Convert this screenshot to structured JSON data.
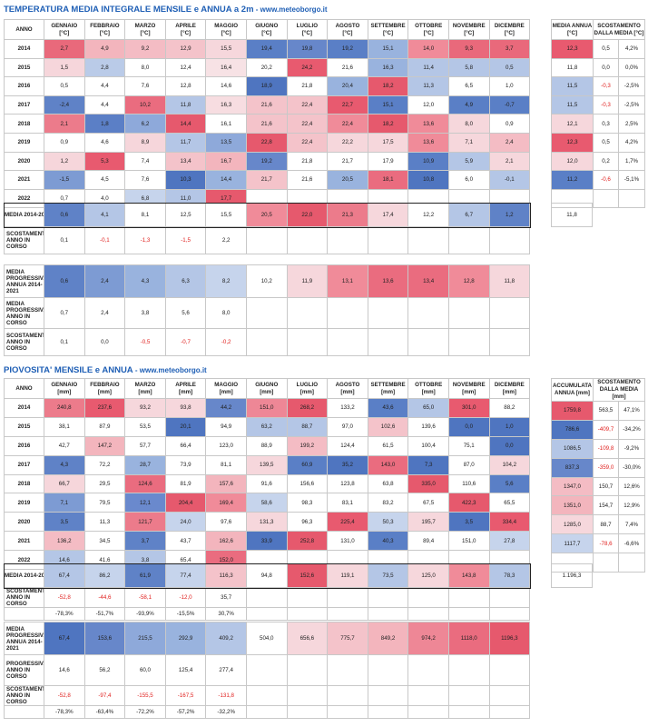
{
  "temp": {
    "title": "TEMPERATURA MEDIA INTEGRALE MENSILE e ANNUA a 2m",
    "site": " - www.meteoborgo.it",
    "col_anno": "ANNO",
    "months": [
      "GENNAIO",
      "FEBBRAIO",
      "MARZO",
      "APRILE",
      "MAGGIO",
      "GIUGNO",
      "LUGLIO",
      "AGOSTO",
      "SETTEMBRE",
      "OTTOBRE",
      "NOVEMBRE",
      "DICEMBRE"
    ],
    "unit": "[°C]",
    "annual_head": "MEDIA ANNUA [°C]",
    "dev_head": "SCOSTAMENTO DALLA MEDIA [°C]",
    "rows": [
      {
        "year": "2014",
        "v": [
          "2,7",
          "4,9",
          "9,2",
          "12,9",
          "15,5",
          "19,4",
          "19,8",
          "19,2",
          "15,1",
          "14,0",
          "9,3",
          "3,7"
        ],
        "c": [
          "#e9697b",
          "#f3b5bd",
          "#f4bcc4",
          "#f4c3ca",
          "#f6d7dc",
          "#5a7fc6",
          "#6787ca",
          "#5a7fc6",
          "#99b3de",
          "#f08b99",
          "#e9697b",
          "#e9697b"
        ],
        "avg": "12,3",
        "d1": "0,5",
        "d2": "4,2%"
      },
      {
        "year": "2015",
        "v": [
          "1,5",
          "2,8",
          "8,0",
          "12,4",
          "16,4",
          "20,2",
          "24,2",
          "21,6",
          "16,3",
          "11,4",
          "5,8",
          "0,5"
        ],
        "c": [
          "#f6d6db",
          "#bacbe8",
          "#ffffff",
          "#ffffff",
          "#f7e2e5",
          "#ffffff",
          "#e85a6f",
          "#ffffff",
          "#99b3de",
          "#b4c6e6",
          "#b4c6e6",
          "#b4c6e6"
        ],
        "avg": "11,8",
        "d1": "0,0",
        "d2": "0,0%"
      },
      {
        "year": "2016",
        "v": [
          "0,5",
          "4,4",
          "7,6",
          "12,8",
          "14,6",
          "18,9",
          "21,8",
          "20,4",
          "18,2",
          "11,3",
          "6,5",
          "1,0"
        ],
        "c": [
          "#ffffff",
          "#ffffff",
          "#ffffff",
          "#ffffff",
          "#ffffff",
          "#4f75c0",
          "#ffffff",
          "#99b3de",
          "#e6596d",
          "#b4c6e6",
          "#ffffff",
          "#ffffff"
        ],
        "avg": "11,5",
        "d1": "-0,3",
        "d2": "-2,5%"
      },
      {
        "year": "2017",
        "v": [
          "-2,4",
          "4,4",
          "10,2",
          "11,8",
          "16,3",
          "21,6",
          "22,4",
          "22,7",
          "15,1",
          "12,0",
          "4,9",
          "-0,7"
        ],
        "c": [
          "#5f82c7",
          "#ffffff",
          "#ea6c7f",
          "#b4c6e6",
          "#f7dde1",
          "#f4c3ca",
          "#f4c3ca",
          "#e85a6f",
          "#5a7fc6",
          "#ffffff",
          "#5a7fc6",
          "#5a7fc6"
        ],
        "avg": "11,5",
        "d1": "-0,3",
        "d2": "-2,5%"
      },
      {
        "year": "2018",
        "v": [
          "2,1",
          "1,8",
          "6,2",
          "14,4",
          "16,1",
          "21,6",
          "22,4",
          "22,4",
          "18,2",
          "13,6",
          "8,0",
          "0,9"
        ],
        "c": [
          "#ec7b8b",
          "#5b7fc6",
          "#8ea9da",
          "#e6596d",
          "#ffffff",
          "#f4c3ca",
          "#f4c3ca",
          "#f08b99",
          "#e6596d",
          "#f08b99",
          "#f6d7dc",
          "#ffffff"
        ],
        "avg": "12,1",
        "d1": "0,3",
        "d2": "2,5%"
      },
      {
        "year": "2019",
        "v": [
          "0,9",
          "4,6",
          "8,9",
          "11,7",
          "13,5",
          "22,8",
          "22,4",
          "22,2",
          "17,5",
          "13,6",
          "7,1",
          "2,4"
        ],
        "c": [
          "#ffffff",
          "#ffffff",
          "#f6d6db",
          "#b4c6e6",
          "#8ea9da",
          "#e6596d",
          "#f4c3ca",
          "#f6d7dc",
          "#f6d7dc",
          "#f08b99",
          "#f6d7dc",
          "#f4bcc4"
        ],
        "avg": "12,3",
        "d1": "0,5",
        "d2": "4,2%"
      },
      {
        "year": "2020",
        "v": [
          "1,2",
          "5,3",
          "7,4",
          "13,4",
          "16,7",
          "19,2",
          "21,8",
          "21,7",
          "17,9",
          "10,9",
          "5,9",
          "2,1"
        ],
        "c": [
          "#f6d6db",
          "#e85a6f",
          "#ffffff",
          "#f4c3ca",
          "#f3b5bd",
          "#6787ca",
          "#ffffff",
          "#ffffff",
          "#ffffff",
          "#5a7fc6",
          "#b4c6e6",
          "#f6d7dc"
        ],
        "avg": "12,0",
        "d1": "0,2",
        "d2": "1,7%"
      },
      {
        "year": "2021",
        "v": [
          "-1,5",
          "4,5",
          "7,6",
          "10,3",
          "14,4",
          "21,7",
          "21,6",
          "20,5",
          "18,1",
          "10,8",
          "6,0",
          "-0,1"
        ],
        "c": [
          "#7d9bd3",
          "#ffffff",
          "#ffffff",
          "#4f75c0",
          "#99b3de",
          "#f4c3ca",
          "#ffffff",
          "#99b3de",
          "#ea6c7f",
          "#4f75c0",
          "#ffffff",
          "#b4c6e6"
        ],
        "avg": "11,2",
        "d1": "-0,6",
        "d2": "-5,1%"
      },
      {
        "year": "2022",
        "v": [
          "0,7",
          "4,0",
          "6,8",
          "11,0",
          "17,7",
          "",
          "",
          "",
          "",
          "",
          "",
          ""
        ],
        "c": [
          "#ffffff",
          "#ffffff",
          "#c6d4ec",
          "#b4c6e6",
          "#e6596d",
          "#fff",
          "#fff",
          "#fff",
          "#fff",
          "#fff",
          "#fff",
          "#fff"
        ],
        "avg": "",
        "d1": "",
        "d2": ""
      }
    ],
    "media_label": "MEDIA 2014-2021",
    "media_vals": [
      "0,6",
      "4,1",
      "8,1",
      "12,5",
      "15,5",
      "20,5",
      "22,0",
      "21,3",
      "17,4",
      "12,2",
      "6,7",
      "1,2"
    ],
    "media_colors": [
      "#5f82c7",
      "#b4c6e6",
      "#ffffff",
      "#ffffff",
      "#ffffff",
      "#f08b99",
      "#e6596d",
      "#ec7b8b",
      "#f6d7dc",
      "#ffffff",
      "#b4c6e6",
      "#5f82c7"
    ],
    "media_annual": "11,8",
    "scost_label": "SCOSTAMENTO ANNO IN CORSO",
    "scost_vals": [
      "0,1",
      "-0,1",
      "-1,3",
      "-1,5",
      "2,2",
      "",
      "",
      "",
      "",
      "",
      "",
      ""
    ],
    "prog_label": "MEDIA PROGRESSIVA ANNUA 2014-2021",
    "prog_vals": [
      "0,6",
      "2,4",
      "4,3",
      "6,3",
      "8,2",
      "10,2",
      "11,9",
      "13,1",
      "13,6",
      "13,4",
      "12,8",
      "11,8"
    ],
    "prog_colors": [
      "#5f82c7",
      "#7d9bd3",
      "#99b3de",
      "#b4c6e6",
      "#c6d4ec",
      "#ffffff",
      "#f6d7dc",
      "#f08b99",
      "#ea6c7f",
      "#ea6c7f",
      "#f08b99",
      "#f6d7dc"
    ],
    "prog_corso_label": "MEDIA PROGRESSIVA ANNO IN CORSO",
    "prog_corso_vals": [
      "0,7",
      "2,4",
      "3,8",
      "5,6",
      "8,0",
      "",
      "",
      "",
      "",
      "",
      "",
      ""
    ],
    "scost2_label": "SCOSTAMENTO ANNO IN CORSO",
    "scost2_vals": [
      "0,1",
      "0,0",
      "-0,5",
      "-0,7",
      "-0,2",
      "",
      "",
      "",
      "",
      "",
      "",
      ""
    ]
  },
  "rain": {
    "title": "PIOVOSITA' MENSILE e ANNUA",
    "site": " - www.meteoborgo.it",
    "col_anno": "ANNO",
    "months": [
      "GENNAIO",
      "FEBBRAIO",
      "MARZO",
      "APRILE",
      "MAGGIO",
      "GIUGNO",
      "LUGLIO",
      "AGOSTO",
      "SETTEMBRE",
      "OTTOBRE",
      "NOVEMBRE",
      "DICEMBRE"
    ],
    "unit": "[mm]",
    "annual_head": "ACCUMULATA ANNUA [mm]",
    "dev_head": "SCOSTAMENTO DALLA MEDIA [mm]",
    "rows": [
      {
        "year": "2014",
        "v": [
          "240,8",
          "237,6",
          "93,2",
          "93,8",
          "44,2",
          "151,0",
          "268,2",
          "133,2",
          "43,6",
          "65,0",
          "301,0",
          "88,2"
        ],
        "c": [
          "#ec7b8b",
          "#e85a6f",
          "#f6d7dc",
          "#f6d7dc",
          "#6787ca",
          "#ee8796",
          "#e6596d",
          "#ffffff",
          "#5a7fc6",
          "#b4c6e6",
          "#e85a6f",
          "#ffffff"
        ],
        "avg": "1759,8",
        "d1": "563,5",
        "d2": "47,1%"
      },
      {
        "year": "2015",
        "v": [
          "38,1",
          "87,9",
          "53,5",
          "20,1",
          "94,9",
          "63,2",
          "88,7",
          "97,0",
          "102,6",
          "139,6",
          "0,0",
          "1,0"
        ],
        "c": [
          "#ffffff",
          "#ffffff",
          "#ffffff",
          "#4f75c0",
          "#ffffff",
          "#b4c6e6",
          "#b4c6e6",
          "#ffffff",
          "#f4c3ca",
          "#ffffff",
          "#4f75c0",
          "#4f75c0"
        ],
        "avg": "786,6",
        "d1": "-409,7",
        "d2": "-34,2%"
      },
      {
        "year": "2016",
        "v": [
          "42,7",
          "147,2",
          "57,7",
          "66,4",
          "123,0",
          "88,9",
          "199,2",
          "124,4",
          "61,5",
          "100,4",
          "75,1",
          "0,0"
        ],
        "c": [
          "#ffffff",
          "#f3b5bd",
          "#ffffff",
          "#ffffff",
          "#ffffff",
          "#ffffff",
          "#f4bcc4",
          "#ffffff",
          "#ffffff",
          "#ffffff",
          "#ffffff",
          "#4f75c0"
        ],
        "avg": "1086,5",
        "d1": "-109,8",
        "d2": "-9,2%"
      },
      {
        "year": "2017",
        "v": [
          "4,3",
          "72,2",
          "28,7",
          "73,9",
          "81,1",
          "139,5",
          "60,9",
          "35,2",
          "143,0",
          "7,3",
          "87,0",
          "104,2"
        ],
        "c": [
          "#5f82c7",
          "#ffffff",
          "#99b3de",
          "#ffffff",
          "#ffffff",
          "#f6d7dc",
          "#5a7fc6",
          "#4f75c0",
          "#ea6c7f",
          "#4f75c0",
          "#ffffff",
          "#f6d7dc"
        ],
        "avg": "837,3",
        "d1": "-359,0",
        "d2": "-30,0%"
      },
      {
        "year": "2018",
        "v": [
          "66,7",
          "29,5",
          "124,6",
          "81,9",
          "157,6",
          "91,6",
          "156,6",
          "123,8",
          "63,8",
          "335,0",
          "110,6",
          "5,6"
        ],
        "c": [
          "#f6d6db",
          "#ffffff",
          "#ea6c7f",
          "#ffffff",
          "#f3b5bd",
          "#ffffff",
          "#ffffff",
          "#ffffff",
          "#ffffff",
          "#e6596d",
          "#ffffff",
          "#5a7fc6"
        ],
        "avg": "1347,0",
        "d1": "150,7",
        "d2": "12,6%"
      },
      {
        "year": "2019",
        "v": [
          "7,1",
          "79,5",
          "12,1",
          "204,4",
          "169,4",
          "58,6",
          "98,3",
          "83,1",
          "83,2",
          "67,5",
          "422,3",
          "65,5"
        ],
        "c": [
          "#7d9bd3",
          "#ffffff",
          "#6a89cd",
          "#e6596d",
          "#f08b99",
          "#c6d4ec",
          "#ffffff",
          "#ffffff",
          "#ffffff",
          "#ffffff",
          "#e6596d",
          "#ffffff"
        ],
        "avg": "1351,0",
        "d1": "154,7",
        "d2": "12,9%"
      },
      {
        "year": "2020",
        "v": [
          "3,5",
          "11,3",
          "121,7",
          "24,0",
          "97,6",
          "131,3",
          "96,3",
          "225,4",
          "50,3",
          "195,7",
          "3,5",
          "334,4"
        ],
        "c": [
          "#5f82c7",
          "#ffffff",
          "#ec7b8b",
          "#c6d4ec",
          "#ffffff",
          "#f6d7dc",
          "#ffffff",
          "#e85a6f",
          "#c6d4ec",
          "#f6d7dc",
          "#4f75c0",
          "#e85a6f"
        ],
        "avg": "1285,0",
        "d1": "88,7",
        "d2": "7,4%"
      },
      {
        "year": "2021",
        "v": [
          "136,2",
          "34,5",
          "3,7",
          "43,7",
          "162,6",
          "33,9",
          "252,8",
          "131,0",
          "40,3",
          "89,4",
          "151,0",
          "27,8"
        ],
        "c": [
          "#f4bcc4",
          "#ffffff",
          "#5f82c7",
          "#ffffff",
          "#f3b5bd",
          "#4f75c0",
          "#e6596d",
          "#ffffff",
          "#5a7fc6",
          "#ffffff",
          "#ffffff",
          "#c6d4ec"
        ],
        "avg": "1117,7",
        "d1": "-78,6",
        "d2": "-6,6%"
      },
      {
        "year": "2022",
        "v": [
          "14,6",
          "41,6",
          "3,8",
          "65,4",
          "152,0",
          "",
          "",
          "",
          "",
          "",
          "",
          ""
        ],
        "c": [
          "#b4c6e6",
          "#ffffff",
          "#b4c6e6",
          "#ffffff",
          "#ea6c7f",
          "#fff",
          "#fff",
          "#fff",
          "#fff",
          "#fff",
          "#fff",
          "#fff"
        ],
        "avg": "",
        "d1": "",
        "d2": ""
      }
    ],
    "media_label": "MEDIA 2014-2021",
    "media_vals": [
      "67,4",
      "86,2",
      "61,9",
      "77,4",
      "116,3",
      "94,8",
      "152,6",
      "119,1",
      "73,5",
      "125,0",
      "143,8",
      "78,3"
    ],
    "media_colors": [
      "#b4c6e6",
      "#c6d4ec",
      "#5f82c7",
      "#c6d4ec",
      "#f4c3ca",
      "#ffffff",
      "#e6596d",
      "#f6d7dc",
      "#b4c6e6",
      "#f6d7dc",
      "#f08b99",
      "#b4c6e6"
    ],
    "media_annual": "1.196,3",
    "scost_label": "SCOSTAMENTO ANNO IN CORSO",
    "scost_vals": [
      "-52,8",
      "-44,6",
      "-58,1",
      "-12,0",
      "35,7",
      "",
      "",
      "",
      "",
      "",
      "",
      ""
    ],
    "scost_pct": [
      "-78,3%",
      "-51,7%",
      "-93,9%",
      "-15,5%",
      "30,7%",
      "",
      "",
      "",
      "",
      "",
      "",
      ""
    ],
    "prog_label": "MEDIA PROGRESSIVA ANNUA 2014-2021",
    "prog_vals": [
      "67,4",
      "153,6",
      "215,5",
      "292,9",
      "409,2",
      "504,0",
      "656,6",
      "775,7",
      "849,2",
      "974,2",
      "1118,0",
      "1196,3"
    ],
    "prog_colors": [
      "#4f75c0",
      "#6787ca",
      "#8ea9da",
      "#99b3de",
      "#b4c6e6",
      "#ffffff",
      "#f6d7dc",
      "#f4c3ca",
      "#f3b5bd",
      "#ee8796",
      "#ea6c7f",
      "#e6596d"
    ],
    "prog_corso_label": "PROGRESSIVA ANNO IN CORSO",
    "prog_corso_vals": [
      "14,6",
      "56,2",
      "60,0",
      "125,4",
      "277,4",
      "",
      "",
      "",
      "",
      "",
      "",
      ""
    ],
    "scost2_label": "SCOSTAMENTO ANNO IN CORSO",
    "scost2_vals": [
      "-52,8",
      "-97,4",
      "-155,5",
      "-167,5",
      "-131,8",
      "",
      "",
      "",
      "",
      "",
      "",
      ""
    ],
    "scost2_pct": [
      "-78,3%",
      "-63,4%",
      "-72,2%",
      "-57,2%",
      "-32,2%",
      "",
      "",
      "",
      "",
      "",
      "",
      ""
    ]
  }
}
